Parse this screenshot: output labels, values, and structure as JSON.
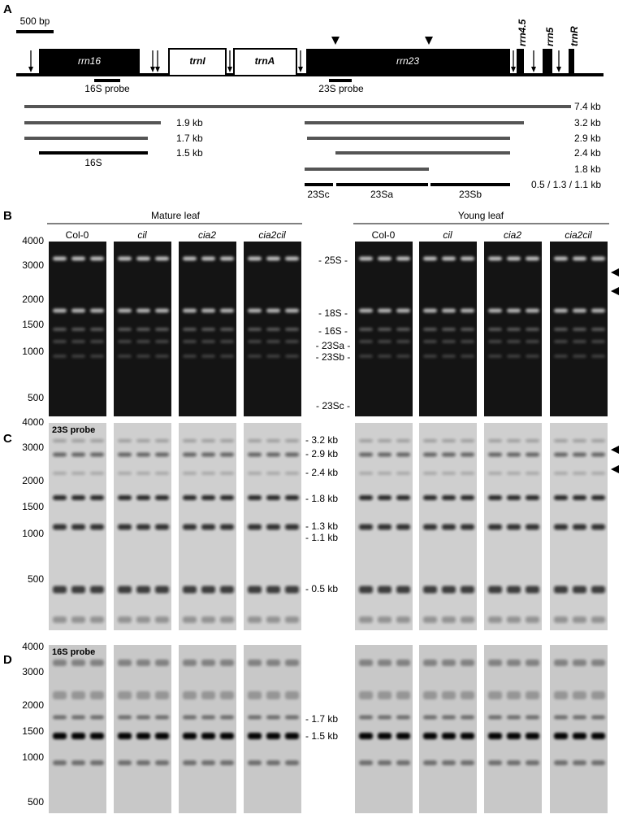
{
  "panel_a": {
    "label": "A",
    "scale_bar": "500 bp",
    "genes": [
      "rrn16",
      "trnI",
      "trnA",
      "rrn23",
      "rrn4.5",
      "rrn5",
      "trnR"
    ],
    "probes": [
      "16S probe",
      "23S probe"
    ],
    "transcripts": [
      "7.4 kb",
      "1.9 kb",
      "3.2 kb",
      "1.7 kb",
      "2.9 kb",
      "1.5 kb",
      "16S",
      "2.4 kb",
      "1.8 kb",
      "0.5 / 1.3 / 1.1 kb"
    ],
    "fragments": [
      "23Sc",
      "23Sa",
      "23Sb"
    ]
  },
  "panel_b": {
    "label": "B",
    "groups": [
      "Mature leaf",
      "Young leaf"
    ],
    "lanes": [
      "Col-0",
      "cil",
      "cia2",
      "cia2cil",
      "Col-0",
      "cil",
      "cia2",
      "cia2cil"
    ],
    "size_marks": [
      "4000",
      "3000",
      "2000",
      "1500",
      "1000",
      "500"
    ],
    "bands": [
      "- 25S -",
      "- 18S -",
      "- 16S -",
      "- 23Sa -",
      "- 23Sb -",
      "- 23Sc -"
    ]
  },
  "panel_c": {
    "label": "C",
    "probe": "23S probe",
    "size_marks": [
      "4000",
      "3000",
      "2000",
      "1500",
      "1000",
      "500"
    ],
    "bands": [
      "- 3.2 kb",
      "- 2.9 kb",
      "- 2.4 kb",
      "- 1.8 kb",
      "- 1.3 kb",
      "- 1.1 kb",
      "- 0.5 kb"
    ]
  },
  "panel_d": {
    "label": "D",
    "probe": "16S probe",
    "size_marks": [
      "4000",
      "3000",
      "2000",
      "1500",
      "1000",
      "500"
    ],
    "bands": [
      "- 1.7 kb",
      "- 1.5 kb"
    ]
  }
}
